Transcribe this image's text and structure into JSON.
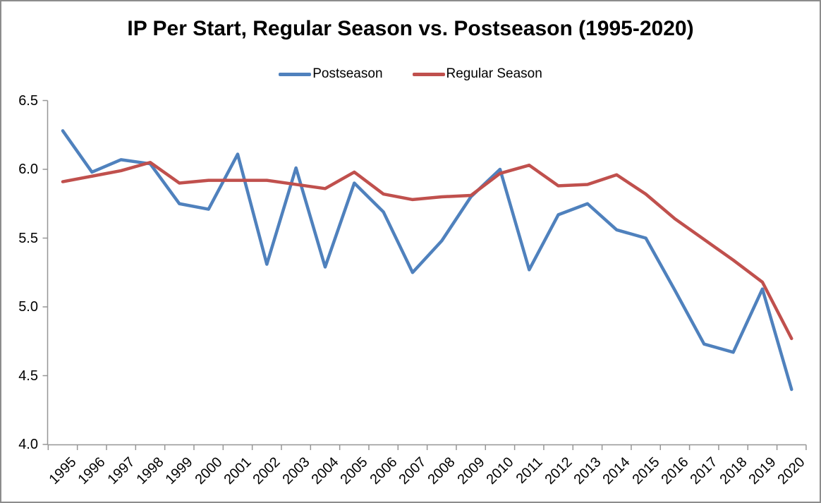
{
  "title": "IP Per Start, Regular Season vs. Postseason (1995-2020)",
  "legend": {
    "items": [
      {
        "label": "Postseason",
        "color": "#4F81BD"
      },
      {
        "label": "Regular Season",
        "color": "#C0504D"
      }
    ]
  },
  "colors": {
    "postseason": "#4F81BD",
    "regular_season": "#C0504D",
    "axis": "#969696",
    "text": "#000000",
    "background": "#FFFFFF",
    "frame_border": "#8C8C8C"
  },
  "chart_data": {
    "type": "line",
    "title": "IP Per Start, Regular Season vs. Postseason (1995-2020)",
    "xlabel": "",
    "ylabel": "",
    "ylim": [
      4.0,
      6.5
    ],
    "yticks": [
      "6.5",
      "6.0",
      "5.5",
      "5.0",
      "4.5",
      "4.0"
    ],
    "grid": false,
    "legend_position": "top",
    "categories": [
      "1995",
      "1996",
      "1997",
      "1998",
      "1999",
      "2000",
      "2001",
      "2002",
      "2003",
      "2004",
      "2005",
      "2006",
      "2007",
      "2008",
      "2009",
      "2010",
      "2011",
      "2012",
      "2013",
      "2014",
      "2015",
      "2016",
      "2017",
      "2018",
      "2019",
      "2020"
    ],
    "series": [
      {
        "name": "Postseason",
        "color": "#4F81BD",
        "values": [
          6.28,
          5.98,
          6.07,
          6.04,
          5.75,
          5.71,
          6.11,
          5.31,
          6.01,
          5.29,
          5.9,
          5.69,
          5.25,
          5.48,
          5.8,
          6.0,
          5.27,
          5.67,
          5.75,
          5.56,
          5.5,
          5.12,
          4.73,
          4.67,
          5.13,
          4.4
        ]
      },
      {
        "name": "Regular Season",
        "color": "#C0504D",
        "values": [
          5.91,
          5.95,
          5.99,
          6.05,
          5.9,
          5.92,
          5.92,
          5.92,
          5.89,
          5.86,
          5.98,
          5.82,
          5.78,
          5.8,
          5.81,
          5.97,
          6.03,
          5.88,
          5.89,
          5.96,
          5.82,
          5.64,
          5.49,
          5.34,
          5.18,
          4.77
        ]
      }
    ]
  }
}
